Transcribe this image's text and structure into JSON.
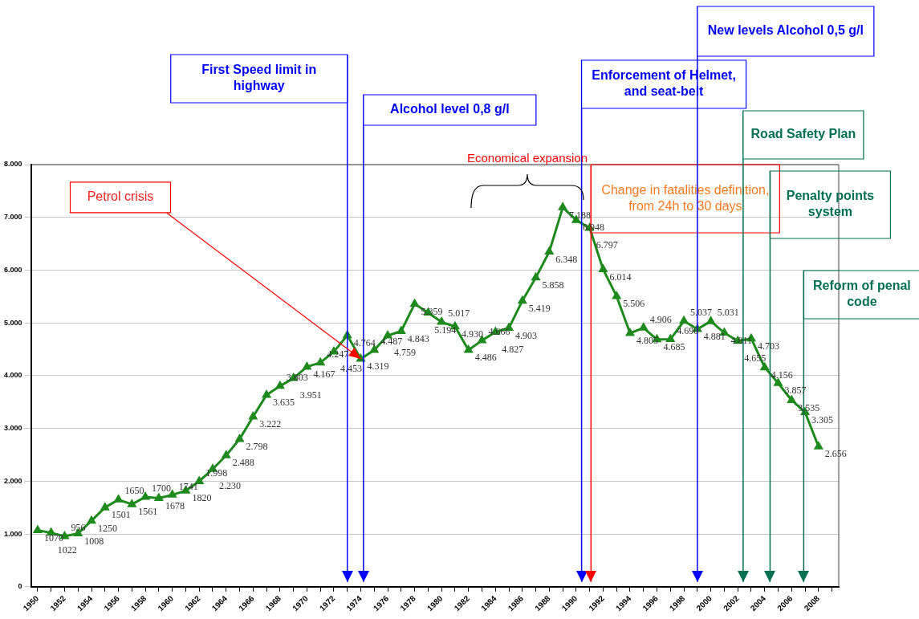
{
  "chart_data": {
    "type": "line",
    "x": [
      1950,
      1951,
      1952,
      1953,
      1954,
      1955,
      1956,
      1957,
      1958,
      1959,
      1960,
      1961,
      1962,
      1963,
      1964,
      1965,
      1966,
      1967,
      1968,
      1969,
      1970,
      1971,
      1972,
      1973,
      1974,
      1975,
      1976,
      1977,
      1978,
      1979,
      1980,
      1981,
      1982,
      1983,
      1984,
      1985,
      1986,
      1987,
      1988,
      1989,
      1990,
      1991,
      1992,
      1993,
      1994,
      1995,
      1996,
      1997,
      1998,
      1999,
      2000,
      2001,
      2002,
      2003,
      2004,
      2005,
      2006,
      2007,
      2008
    ],
    "series": [
      {
        "color": "#1e8a1e",
        "values": [
          1070,
          1022,
          956,
          1008,
          1250,
          1501,
          1650,
          1561,
          1700,
          1678,
          1741,
          1820,
          1998,
          2230,
          2488,
          2798,
          3222,
          3635,
          3803,
          3951,
          4167,
          4247,
          4453,
          4764,
          4319,
          4487,
          4759,
          4843,
          5359,
          5194,
          5017,
          4930,
          4486,
          4666,
          4827,
          4903,
          5419,
          5858,
          6348,
          7188,
          6948,
          6797,
          6014,
          5506,
          4805,
          4906,
          4685,
          4690,
          5037,
          4881,
          5031,
          4811,
          4655,
          4703,
          4156,
          3857,
          3535,
          3305,
          2656
        ],
        "value_labels": [
          "1070",
          "1022",
          "956",
          "1008",
          "1250",
          "1501",
          "1650",
          "1561",
          "1700",
          "1678",
          "1741",
          "1820",
          "1.998",
          "2.230",
          "2.488",
          "2.798",
          "3.222",
          "3.635",
          "3.803",
          "3.951",
          "4.167",
          "4.247",
          "4.453",
          "4.764",
          "4.319",
          "4.487",
          "4.759",
          "4.843",
          "5.359",
          "5.194",
          "5.017",
          "4.930",
          "4.486",
          "4.666",
          "4.827",
          "4.903",
          "5.419",
          "5.858",
          "6.348",
          "7.188",
          "6.948",
          "6.797",
          "6.014",
          "5.506",
          "4.805",
          "4.906",
          "4.685",
          "4.690",
          "5.037",
          "4.881",
          "5.031",
          "4.811",
          "4.655",
          "4.703",
          "4.156",
          "3.857",
          "3.535",
          "3.305",
          "2.656"
        ]
      }
    ],
    "marker": "triangle",
    "grid": "y",
    "legend": false,
    "xlim": [
      1949.5,
      2009.5
    ],
    "xticks": [
      1950,
      {
        "value": 1951,
        "label": null
      },
      1952,
      {
        "value": 1953,
        "label": null
      },
      1954,
      {
        "value": 1955,
        "label": null
      },
      1956,
      {
        "value": 1957,
        "label": null
      },
      1958,
      {
        "value": 1959,
        "label": null
      },
      1960,
      {
        "value": 1961,
        "label": null
      },
      1962,
      {
        "value": 1963,
        "label": null
      },
      1964,
      {
        "value": 1965,
        "label": null
      },
      1966,
      {
        "value": 1967,
        "label": null
      },
      1968,
      {
        "value": 1969,
        "label": null
      },
      1970,
      {
        "value": 1971,
        "label": null
      },
      1972,
      {
        "value": 1973,
        "label": null
      },
      1974,
      {
        "value": 1975,
        "label": null
      },
      1976,
      {
        "value": 1977,
        "label": null
      },
      1978,
      {
        "value": 1979,
        "label": null
      },
      1980,
      {
        "value": 1981,
        "label": null
      },
      1982,
      {
        "value": 1983,
        "label": null
      },
      1984,
      {
        "value": 1985,
        "label": null
      },
      1986,
      {
        "value": 1987,
        "label": null
      },
      1988,
      {
        "value": 1989,
        "label": null
      },
      1990,
      {
        "value": 1991,
        "label": null
      },
      1992,
      {
        "value": 1993,
        "label": null
      },
      1994,
      {
        "value": 1995,
        "label": null
      },
      1996,
      {
        "value": 1997,
        "label": null
      },
      1998,
      {
        "value": 1999,
        "label": null
      },
      2000,
      {
        "value": 2001,
        "label": null
      },
      2002,
      {
        "value": 2003,
        "label": null
      },
      2004,
      {
        "value": 2005,
        "label": null
      },
      2006,
      {
        "value": 2007,
        "label": null
      },
      2008,
      {
        "value": 2009,
        "label": null
      }
    ],
    "ylim": [
      0,
      8000
    ],
    "yticks": [
      0,
      {
        "value": 1000,
        "label": "1.000"
      },
      {
        "value": 2000,
        "label": "2.000"
      },
      {
        "value": 3000,
        "label": "3.000"
      },
      {
        "value": 4000,
        "label": "4.000"
      },
      {
        "value": 5000,
        "label": "5.000"
      },
      {
        "value": 6000,
        "label": "6.000"
      },
      {
        "value": 7000,
        "label": "7.000"
      },
      {
        "value": 8000,
        "label": "8.000"
      }
    ],
    "ref_lines": [
      {
        "axis": "x",
        "value": 1973,
        "label": "First Speed limit in highway",
        "color": "#0000ff"
      },
      {
        "axis": "x",
        "value": 1974.2,
        "label": "Alcohol level 0,8 g/l",
        "color": "#0000ff"
      },
      {
        "axis": "x",
        "value": 1990.4,
        "label": "Enforcement of Helmet, and seat-belt",
        "color": "#0000ff"
      },
      {
        "axis": "x",
        "value": 1991.1,
        "label": "Change in fatalities definition, from 24h to 30 days",
        "color": "#ff0000"
      },
      {
        "axis": "x",
        "value": 1999,
        "label": "New levels Alcohol 0,5 g/l",
        "color": "#0000ff"
      },
      {
        "axis": "x",
        "value": 2002.4,
        "label": "Road Safety Plan",
        "color": "#007050"
      },
      {
        "axis": "x",
        "value": 2004.4,
        "label": "Penalty points system",
        "color": "#007050"
      },
      {
        "axis": "x",
        "value": 2006.9,
        "label": "Reform of penal code",
        "color": "#007050"
      }
    ],
    "annotations": [
      {
        "text": "Petrol crisis",
        "x": 1974,
        "y": 4319
      },
      "Economical expansion"
    ]
  }
}
